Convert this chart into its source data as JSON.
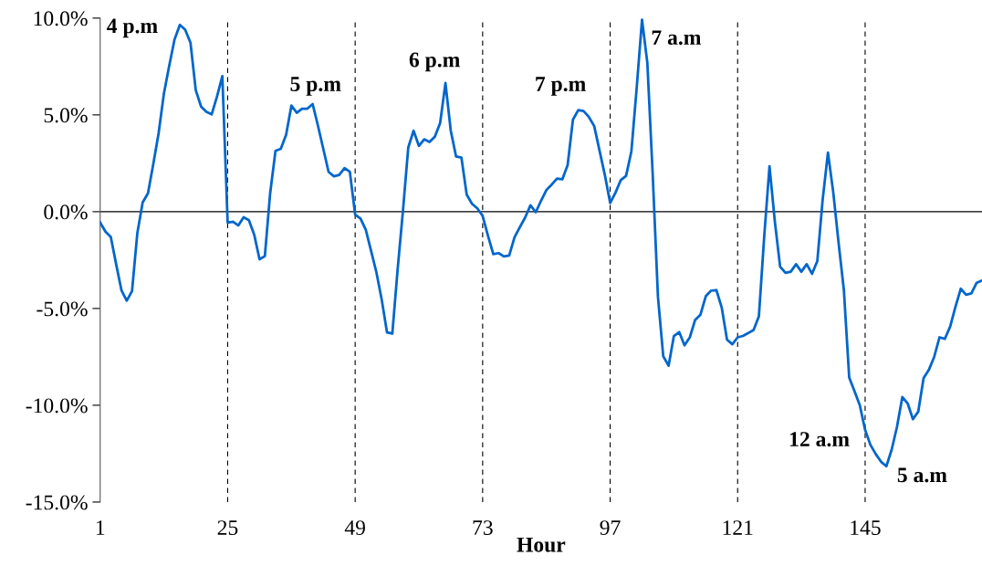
{
  "chart_data": {
    "type": "line",
    "xlabel": "Hour",
    "x": [
      1,
      2,
      3,
      4,
      5,
      6,
      7,
      8,
      9,
      10,
      11,
      12,
      13,
      14,
      15,
      16,
      17,
      18,
      19,
      20,
      21,
      22,
      23,
      24,
      25,
      26,
      27,
      28,
      29,
      30,
      31,
      32,
      33,
      34,
      35,
      36,
      37,
      38,
      39,
      40,
      41,
      42,
      43,
      44,
      45,
      46,
      47,
      48,
      49,
      50,
      51,
      52,
      53,
      54,
      55,
      56,
      57,
      58,
      59,
      60,
      61,
      62,
      63,
      64,
      65,
      66,
      67,
      68,
      69,
      70,
      71,
      72,
      73,
      74,
      75,
      76,
      77,
      78,
      79,
      80,
      81,
      82,
      83,
      84,
      85,
      86,
      87,
      88,
      89,
      90,
      91,
      92,
      93,
      94,
      95,
      96,
      97,
      98,
      99,
      100,
      101,
      102,
      103,
      104,
      105,
      106,
      107,
      108,
      109,
      110,
      111,
      112,
      113,
      114,
      115,
      116,
      117,
      118,
      119,
      120,
      121,
      122,
      123,
      124,
      125,
      126,
      127,
      128,
      129,
      130,
      131,
      132,
      133,
      134,
      135,
      136,
      137,
      138,
      139,
      140,
      141,
      142,
      143,
      144,
      145,
      146,
      147,
      148,
      149,
      150,
      151,
      152,
      153,
      154,
      155,
      156,
      157,
      158,
      159,
      160,
      161,
      162,
      163,
      164,
      165,
      166,
      167
    ],
    "series": [
      {
        "color": "#0066cc",
        "values": [
          -0.56,
          -1.03,
          -1.3,
          -2.7,
          -4.05,
          -4.6,
          -4.1,
          -1.1,
          0.48,
          0.95,
          2.46,
          4.05,
          6.1,
          7.54,
          8.9,
          9.65,
          9.4,
          8.73,
          6.27,
          5.43,
          5.16,
          5.03,
          5.95,
          7.0,
          -0.56,
          -0.52,
          -0.71,
          -0.29,
          -0.44,
          -1.19,
          -2.46,
          -2.3,
          0.95,
          3.14,
          3.25,
          3.97,
          5.48,
          5.11,
          5.32,
          5.32,
          5.56,
          4.44,
          3.25,
          2.06,
          1.83,
          1.9,
          2.25,
          2.06,
          -0.15,
          -0.35,
          -0.93,
          -2.03,
          -3.13,
          -4.54,
          -6.24,
          -6.3,
          -2.97,
          0.05,
          3.32,
          4.18,
          3.4,
          3.74,
          3.6,
          3.87,
          4.58,
          6.65,
          4.18,
          2.85,
          2.8,
          0.88,
          0.41,
          0.17,
          -0.22,
          -1.24,
          -2.19,
          -2.14,
          -2.31,
          -2.26,
          -1.32,
          -0.8,
          -0.3,
          0.33,
          -0.03,
          0.57,
          1.12,
          1.4,
          1.71,
          1.67,
          2.41,
          4.76,
          5.25,
          5.2,
          4.89,
          4.42,
          3.16,
          1.9,
          0.45,
          0.98,
          1.63,
          1.85,
          3.12,
          6.4,
          9.92,
          7.7,
          2.0,
          -4.4,
          -7.47,
          -7.96,
          -6.42,
          -6.22,
          -6.9,
          -6.49,
          -5.59,
          -5.32,
          -4.37,
          -4.08,
          -4.05,
          -4.95,
          -6.61,
          -6.85,
          -6.49,
          -6.42,
          -6.27,
          -6.11,
          -5.41,
          -1.3,
          2.35,
          -0.5,
          -2.84,
          -3.16,
          -3.1,
          -2.71,
          -3.1,
          -2.71,
          -3.21,
          -2.55,
          0.6,
          3.05,
          1.0,
          -1.6,
          -4.05,
          -8.56,
          -9.27,
          -10.0,
          -11.27,
          -12.05,
          -12.52,
          -12.92,
          -13.15,
          -12.29,
          -11.11,
          -9.58,
          -9.9,
          -10.72,
          -10.33,
          -8.6,
          -8.17,
          -7.5,
          -6.49,
          -6.57,
          -5.94,
          -4.92,
          -3.98,
          -4.29,
          -4.22,
          -3.67,
          -3.56
        ]
      }
    ],
    "xlim": [
      1,
      167
    ],
    "xticks": [
      1,
      25,
      49,
      73,
      97,
      121,
      145
    ],
    "ylim": [
      -15,
      10
    ],
    "yticks": [
      {
        "value": -15,
        "label": "-15.0%"
      },
      {
        "value": -10,
        "label": "-10.0%"
      },
      {
        "value": -5,
        "label": "-5.0%"
      },
      {
        "value": 0,
        "label": "0.0%"
      },
      {
        "value": 5,
        "label": "5.0%"
      },
      {
        "value": 10,
        "label": "10.0%"
      }
    ],
    "ref_lines": [
      {
        "axis": "y",
        "value": 0,
        "color": "#000000",
        "line_style": "solid"
      },
      {
        "axis": "x",
        "value": 25,
        "color": "#000000",
        "line_style": "dashed"
      },
      {
        "axis": "x",
        "value": 49,
        "color": "#000000",
        "line_style": "dashed"
      },
      {
        "axis": "x",
        "value": 73,
        "color": "#000000",
        "line_style": "dashed"
      },
      {
        "axis": "x",
        "value": 97,
        "color": "#000000",
        "line_style": "dashed"
      },
      {
        "axis": "x",
        "value": 121,
        "color": "#000000",
        "line_style": "dashed"
      },
      {
        "axis": "x",
        "value": 145,
        "color": "#000000",
        "line_style": "dashed"
      }
    ],
    "annotations": [
      {
        "text": "4 p.m",
        "x": 16,
        "y": 9.65
      },
      {
        "text": "5 p.m",
        "x": 41,
        "y": 5.56
      },
      {
        "text": "6 p.m",
        "x": 66,
        "y": 6.65
      },
      {
        "text": "7 p.m",
        "x": 91,
        "y": 5.25
      },
      {
        "text": "7 a.m",
        "x": 103,
        "y": 9.92
      },
      {
        "text": "12 a.m",
        "x": 145,
        "y": -11.27
      },
      {
        "text": "5 a.m",
        "x": 149,
        "y": -13.15
      }
    ],
    "grid": false,
    "legend": false,
    "marker": "none",
    "line_style": "solid"
  }
}
